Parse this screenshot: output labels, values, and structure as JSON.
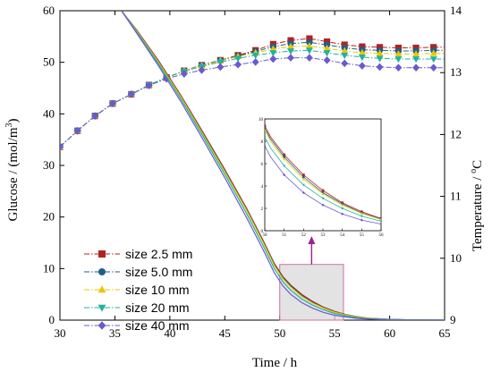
{
  "chart_data": {
    "type": "line",
    "xlabel": "Time / h",
    "ylabel_left": "Glucose / (mol/m",
    "ylabel_left_sup": "3",
    "ylabel_left_close": ")",
    "ylabel_right": "Temperature / ",
    "ylabel_right_unit": "C",
    "ylabel_right_deg": "o",
    "xlim": [
      30,
      65
    ],
    "ylim_left": [
      0,
      60
    ],
    "ylim_right": [
      9,
      14
    ],
    "x_ticks": [
      30,
      35,
      40,
      45,
      50,
      55,
      60,
      65
    ],
    "y_ticks_left": [
      0,
      10,
      20,
      30,
      40,
      50,
      60
    ],
    "y_ticks_right": [
      9,
      10,
      11,
      12,
      13,
      14
    ],
    "grid": false,
    "legend_position": "left",
    "colors": {
      "size_2_5": "#b22222",
      "size_5_0": "#1f5f8b",
      "size_10": "#e6c800",
      "size_20": "#20b2a0",
      "size_40": "#6a5acd",
      "highlight_fill": "#d9d9d9",
      "highlight_border": "#d070a0",
      "arrow": "#a0208c"
    },
    "series": [
      {
        "name": "size 2.5 mm",
        "marker": "square",
        "color": "#b22222",
        "temperature": [
          [
            30,
            11.8
          ],
          [
            31.6,
            12.06
          ],
          [
            33.2,
            12.3
          ],
          [
            34.8,
            12.5
          ],
          [
            36.5,
            12.65
          ],
          [
            38.1,
            12.8
          ],
          [
            39.7,
            12.92
          ],
          [
            41.3,
            13.03
          ],
          [
            42.9,
            13.12
          ],
          [
            44.6,
            13.2
          ],
          [
            46.2,
            13.28
          ],
          [
            47.8,
            13.36
          ],
          [
            49.4,
            13.46
          ],
          [
            51,
            13.52
          ],
          [
            52.7,
            13.55
          ],
          [
            54.3,
            13.5
          ],
          [
            55.9,
            13.45
          ],
          [
            57.5,
            13.42
          ],
          [
            59.1,
            13.41
          ],
          [
            60.8,
            13.4
          ],
          [
            62.4,
            13.4
          ],
          [
            64,
            13.41
          ],
          [
            65,
            13.41
          ]
        ],
        "glucose": [
          [
            35.6,
            60
          ],
          [
            37,
            56.2
          ],
          [
            39,
            50.2
          ],
          [
            41,
            43.6
          ],
          [
            43,
            36.5
          ],
          [
            45,
            29.2
          ],
          [
            47,
            21.6
          ],
          [
            48.5,
            15.4
          ],
          [
            49.5,
            11
          ],
          [
            50.3,
            8.4
          ],
          [
            51,
            6.8
          ],
          [
            52,
            5
          ],
          [
            53,
            3.6
          ],
          [
            54,
            2.5
          ],
          [
            55,
            1.7
          ],
          [
            56,
            1.1
          ],
          [
            57,
            0.7
          ],
          [
            58,
            0.4
          ],
          [
            60,
            0.15
          ],
          [
            62,
            0.05
          ],
          [
            65,
            0.01
          ]
        ]
      },
      {
        "name": "size 5.0 mm",
        "marker": "circle",
        "color": "#1f5f8b",
        "temperature": [
          [
            30,
            11.8
          ],
          [
            31.6,
            12.06
          ],
          [
            33.2,
            12.3
          ],
          [
            34.8,
            12.5
          ],
          [
            36.5,
            12.65
          ],
          [
            38.1,
            12.8
          ],
          [
            39.7,
            12.92
          ],
          [
            41.3,
            13.03
          ],
          [
            42.9,
            13.12
          ],
          [
            44.6,
            13.2
          ],
          [
            46.2,
            13.27
          ],
          [
            47.8,
            13.34
          ],
          [
            49.4,
            13.42
          ],
          [
            51,
            13.47
          ],
          [
            52.7,
            13.49
          ],
          [
            54.3,
            13.45
          ],
          [
            55.9,
            13.4
          ],
          [
            57.5,
            13.37
          ],
          [
            59.1,
            13.36
          ],
          [
            60.8,
            13.35
          ],
          [
            62.4,
            13.35
          ],
          [
            64,
            13.36
          ],
          [
            65,
            13.36
          ]
        ],
        "glucose": [
          [
            35.6,
            60
          ],
          [
            37,
            56.1
          ],
          [
            39,
            50
          ],
          [
            41,
            43.4
          ],
          [
            43,
            36.3
          ],
          [
            45,
            29
          ],
          [
            47,
            21.4
          ],
          [
            48.5,
            15.2
          ],
          [
            49.5,
            10.8
          ],
          [
            50.3,
            8.2
          ],
          [
            51,
            6.6
          ],
          [
            52,
            4.8
          ],
          [
            53,
            3.4
          ],
          [
            54,
            2.4
          ],
          [
            55,
            1.6
          ],
          [
            56,
            1.05
          ],
          [
            57,
            0.65
          ],
          [
            58,
            0.38
          ],
          [
            60,
            0.14
          ],
          [
            62,
            0.05
          ],
          [
            65,
            0.01
          ]
        ]
      },
      {
        "name": "size 10 mm",
        "marker": "triangle-up",
        "color": "#e6c800",
        "temperature": [
          [
            30,
            11.8
          ],
          [
            31.6,
            12.06
          ],
          [
            33.2,
            12.3
          ],
          [
            34.8,
            12.5
          ],
          [
            36.5,
            12.65
          ],
          [
            38.1,
            12.8
          ],
          [
            39.7,
            12.92
          ],
          [
            41.3,
            13.03
          ],
          [
            42.9,
            13.11
          ],
          [
            44.6,
            13.19
          ],
          [
            46.2,
            13.26
          ],
          [
            47.8,
            13.32
          ],
          [
            49.4,
            13.38
          ],
          [
            51,
            13.42
          ],
          [
            52.7,
            13.43
          ],
          [
            54.3,
            13.39
          ],
          [
            55.9,
            13.35
          ],
          [
            57.5,
            13.32
          ],
          [
            59.1,
            13.31
          ],
          [
            60.8,
            13.3
          ],
          [
            62.4,
            13.3
          ],
          [
            64,
            13.31
          ],
          [
            65,
            13.31
          ]
        ],
        "glucose": [
          [
            35.6,
            60
          ],
          [
            37,
            56
          ],
          [
            39,
            49.9
          ],
          [
            41,
            43.3
          ],
          [
            43,
            36.1
          ],
          [
            45,
            28.8
          ],
          [
            47,
            21.2
          ],
          [
            48.5,
            15
          ],
          [
            49.5,
            10.6
          ],
          [
            50.3,
            8
          ],
          [
            51,
            6.4
          ],
          [
            52,
            4.6
          ],
          [
            53,
            3.3
          ],
          [
            54,
            2.3
          ],
          [
            55,
            1.55
          ],
          [
            56,
            1
          ],
          [
            57,
            0.62
          ],
          [
            58,
            0.36
          ],
          [
            60,
            0.13
          ],
          [
            62,
            0.04
          ],
          [
            65,
            0.01
          ]
        ]
      },
      {
        "name": "size 20 mm",
        "marker": "triangle-down",
        "color": "#20b2a0",
        "temperature": [
          [
            30,
            11.8
          ],
          [
            31.6,
            12.06
          ],
          [
            33.2,
            12.3
          ],
          [
            34.8,
            12.5
          ],
          [
            36.5,
            12.65
          ],
          [
            38.1,
            12.8
          ],
          [
            39.7,
            12.92
          ],
          [
            41.3,
            13.02
          ],
          [
            42.9,
            13.1
          ],
          [
            44.6,
            13.17
          ],
          [
            46.2,
            13.23
          ],
          [
            47.8,
            13.28
          ],
          [
            49.4,
            13.32
          ],
          [
            51,
            13.35
          ],
          [
            52.7,
            13.36
          ],
          [
            54.3,
            13.32
          ],
          [
            55.9,
            13.28
          ],
          [
            57.5,
            13.25
          ],
          [
            59.1,
            13.23
          ],
          [
            60.8,
            13.22
          ],
          [
            62.4,
            13.22
          ],
          [
            64,
            13.22
          ],
          [
            65,
            13.22
          ]
        ],
        "glucose": [
          [
            35.6,
            60
          ],
          [
            37,
            55.8
          ],
          [
            39,
            49.6
          ],
          [
            41,
            42.9
          ],
          [
            43,
            35.7
          ],
          [
            45,
            28.3
          ],
          [
            47,
            20.6
          ],
          [
            48.5,
            14.4
          ],
          [
            49.5,
            10
          ],
          [
            50.3,
            7.4
          ],
          [
            51,
            5.8
          ],
          [
            52,
            4.1
          ],
          [
            53,
            2.9
          ],
          [
            54,
            2
          ],
          [
            55,
            1.3
          ],
          [
            56,
            0.85
          ],
          [
            57,
            0.52
          ],
          [
            58,
            0.3
          ],
          [
            60,
            0.1
          ],
          [
            62,
            0.03
          ],
          [
            65,
            0.01
          ]
        ]
      },
      {
        "name": "size 40 mm",
        "marker": "diamond",
        "color": "#6a5acd",
        "temperature": [
          [
            30,
            11.8
          ],
          [
            31.6,
            12.06
          ],
          [
            33.2,
            12.3
          ],
          [
            34.8,
            12.5
          ],
          [
            36.5,
            12.65
          ],
          [
            38.1,
            12.79
          ],
          [
            39.7,
            12.9
          ],
          [
            41.3,
            12.98
          ],
          [
            42.9,
            13.04
          ],
          [
            44.6,
            13.09
          ],
          [
            46.2,
            13.13
          ],
          [
            47.8,
            13.17
          ],
          [
            49.4,
            13.22
          ],
          [
            51,
            13.24
          ],
          [
            52.7,
            13.24
          ],
          [
            54.3,
            13.2
          ],
          [
            55.9,
            13.15
          ],
          [
            57.5,
            13.11
          ],
          [
            59.1,
            13.09
          ],
          [
            60.8,
            13.08
          ],
          [
            62.4,
            13.08
          ],
          [
            64,
            13.08
          ],
          [
            65,
            13.08
          ]
        ],
        "glucose": [
          [
            35.6,
            60
          ],
          [
            37,
            55.6
          ],
          [
            39,
            49.2
          ],
          [
            41,
            42.4
          ],
          [
            43,
            35.1
          ],
          [
            45,
            27.6
          ],
          [
            47,
            19.8
          ],
          [
            48.5,
            13.6
          ],
          [
            49.5,
            9.2
          ],
          [
            50.3,
            6.6
          ],
          [
            51,
            5
          ],
          [
            52,
            3.4
          ],
          [
            53,
            2.3
          ],
          [
            54,
            1.5
          ],
          [
            55,
            0.95
          ],
          [
            56,
            0.6
          ],
          [
            57,
            0.35
          ],
          [
            58,
            0.2
          ],
          [
            60,
            0.06
          ],
          [
            62,
            0.02
          ],
          [
            65,
            0
          ]
        ]
      }
    ],
    "highlight_region": {
      "x": [
        50,
        55.8
      ],
      "y": [
        0,
        10.8
      ]
    },
    "inset": {
      "xlim": [
        50,
        56
      ],
      "ylim": [
        0,
        10
      ],
      "x_ticks": [
        50,
        51,
        52,
        53,
        54,
        55,
        56
      ],
      "y_ticks": [
        0,
        2,
        4,
        6,
        8,
        10
      ]
    }
  }
}
